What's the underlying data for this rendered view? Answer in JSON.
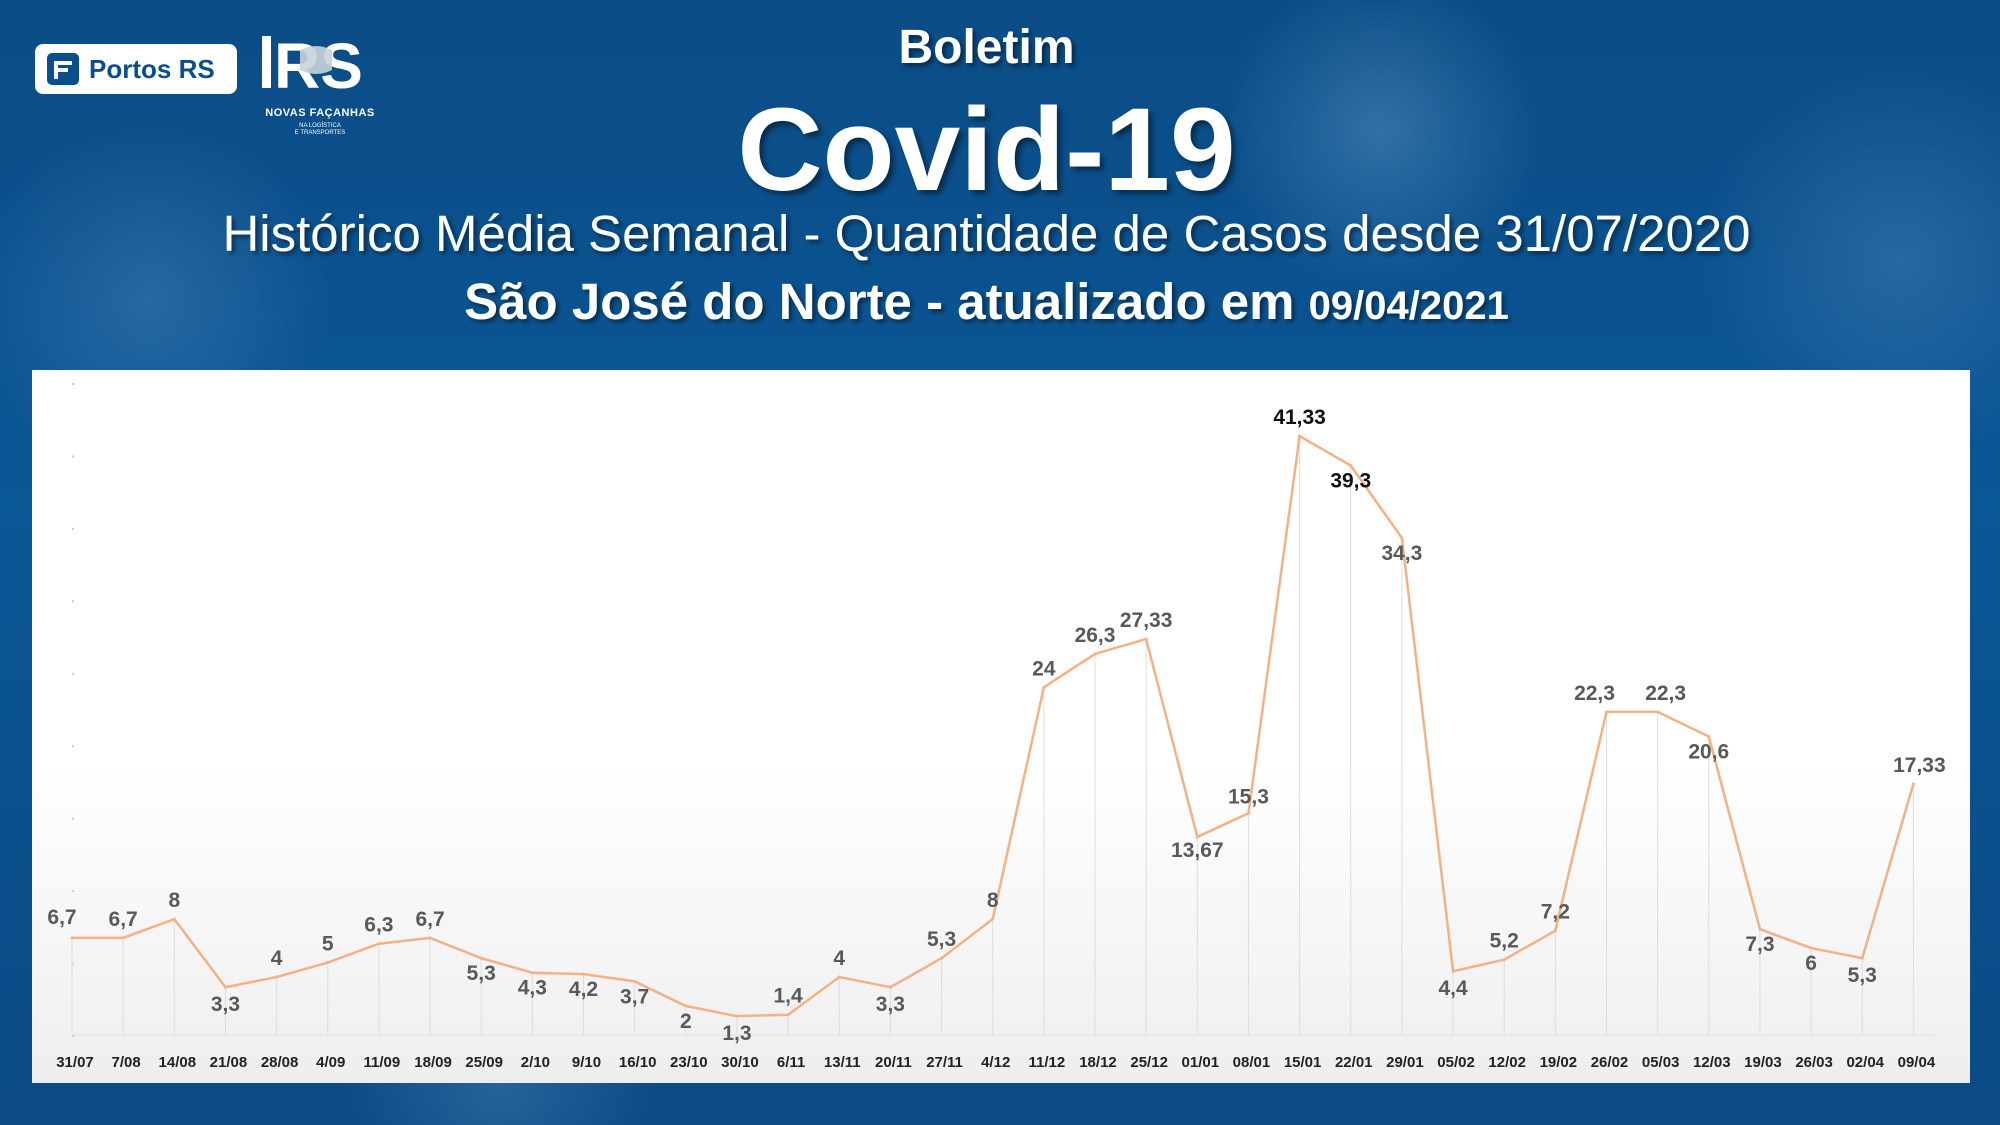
{
  "header": {
    "logo_portos_text": "Portos RS",
    "logo_rs_mark": "RS",
    "logo_rs_tagline": "NOVAS FAÇANHAS",
    "logo_rs_sub1": "NA LOGÍSTICA",
    "logo_rs_sub2": "E TRANSPORTES",
    "kicker": "Boletim",
    "title": "Covid-19",
    "subtitle": "Histórico Média Semanal - Quantidade de Casos desde 31/07/2020",
    "location": "São José do Norte - atualizado em ",
    "updated_date": "09/04/2021"
  },
  "colors": {
    "background": "#0b4f8c",
    "line": "#f4b183",
    "panel": "#ffffff"
  },
  "chart_data": {
    "type": "line",
    "title": "",
    "xlabel": "",
    "ylabel": "",
    "ylim": [
      0,
      45
    ],
    "grid": "vertical drop lines",
    "categories": [
      "31/07",
      "7/08",
      "14/08",
      "21/08",
      "28/08",
      "4/09",
      "11/09",
      "18/09",
      "25/09",
      "2/10",
      "9/10",
      "16/10",
      "23/10",
      "30/10",
      "6/11",
      "13/11",
      "20/11",
      "27/11",
      "4/12",
      "11/12",
      "18/12",
      "25/12",
      "01/01",
      "08/01",
      "15/01",
      "22/01",
      "29/01",
      "05/02",
      "12/02",
      "19/02",
      "26/02",
      "05/03",
      "12/03",
      "19/03",
      "26/03",
      "02/04",
      "09/04"
    ],
    "series": [
      {
        "values": [
          6.7,
          6.7,
          8,
          3.3,
          4,
          5,
          6.3,
          6.7,
          5.3,
          4.3,
          4.2,
          3.7,
          2,
          1.3,
          1.4,
          4,
          3.3,
          5.3,
          8,
          24,
          26.3,
          27.33,
          13.67,
          15.3,
          41.33,
          39.3,
          34.3,
          4.4,
          5.2,
          7.2,
          22.3,
          22.3,
          20.6,
          7.3,
          6,
          5.3,
          17.33
        ],
        "labels": [
          "6,7",
          "6,7",
          "8",
          "3,3",
          "4",
          "5",
          "6,3",
          "6,7",
          "5,3",
          "4,3",
          "4,2",
          "3,7",
          "2",
          "1,3",
          "1,4",
          "4",
          "3,3",
          "5,3",
          "8",
          "24",
          "26,3",
          "27,33",
          "13,67",
          "15,3",
          "41,33",
          "39,3",
          "34,3",
          "4,4",
          "5,2",
          "7,2",
          "22,3",
          "22,3",
          "20,6",
          "7,3",
          "6",
          "5,3",
          "17,33"
        ]
      }
    ]
  }
}
